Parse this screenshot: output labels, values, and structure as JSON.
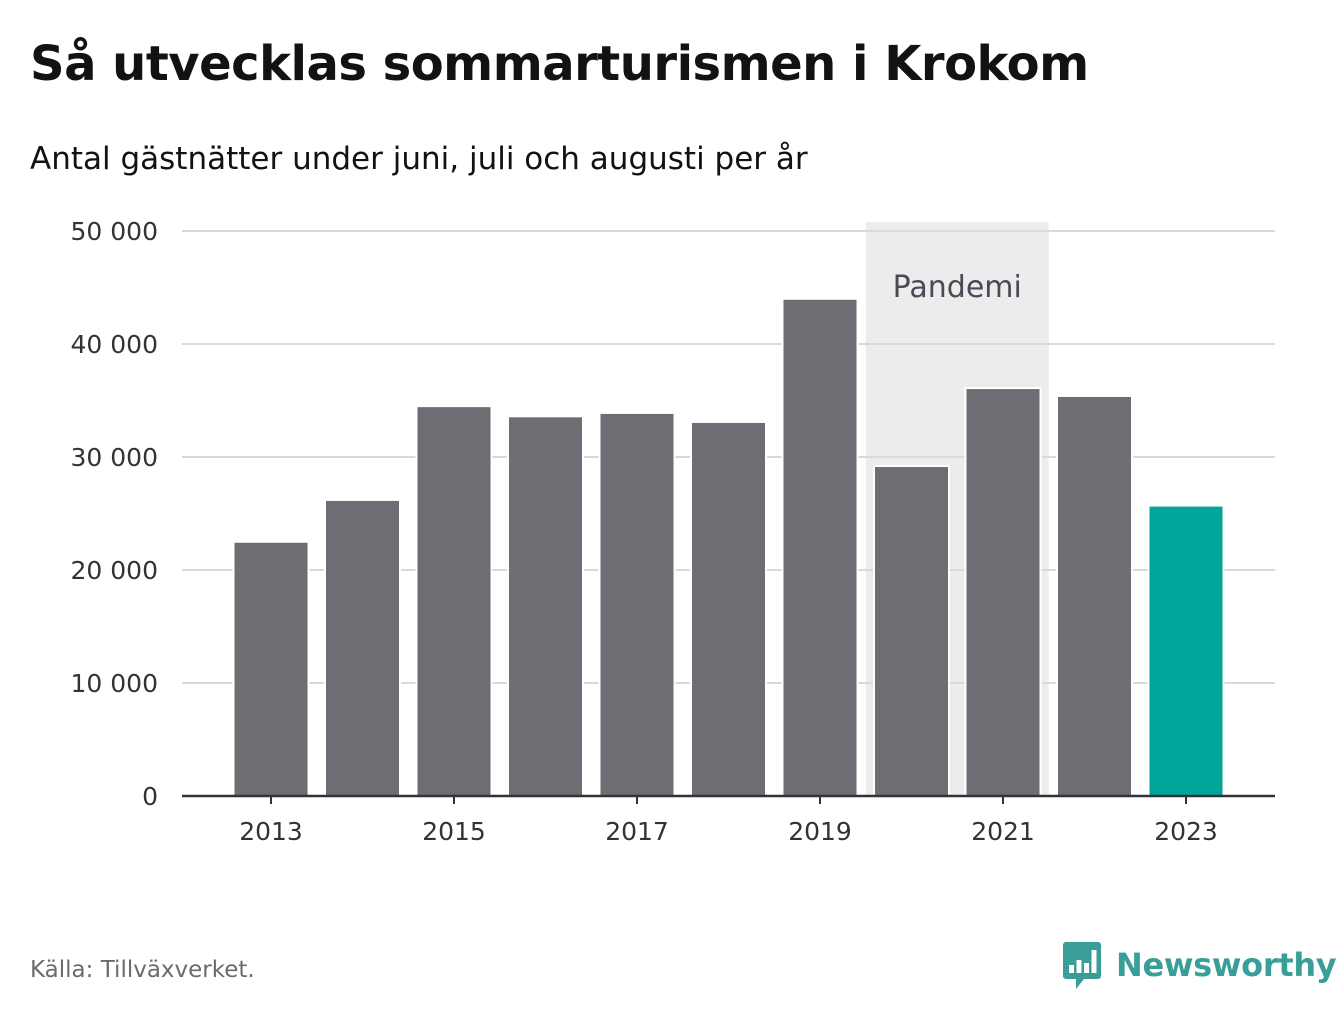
{
  "header": {
    "title": "Så utvecklas sommarturismen i Krokom",
    "subtitle": "Antal gästnätter under juni, juli och augusti per år"
  },
  "footer": {
    "source": "Källa: Tillväxverket.",
    "brand": "Newsworthy",
    "brand_icon": "newsworthy-logo-icon"
  },
  "colors": {
    "bar": "#6e6d73",
    "highlight": "#00a59b",
    "band": "#ececec",
    "grid": "#d9d9d9",
    "axis": "#333333"
  },
  "chart_data": {
    "type": "bar",
    "categories": [
      "2013",
      "2014",
      "2015",
      "2016",
      "2017",
      "2018",
      "2019",
      "2020",
      "2021",
      "2022",
      "2023"
    ],
    "values": [
      22500,
      26200,
      34500,
      33600,
      33900,
      33100,
      44000,
      29200,
      36100,
      35400,
      25700
    ],
    "highlight_index": 10,
    "ylim": [
      0,
      50000
    ],
    "yticks": [
      0,
      10000,
      20000,
      30000,
      40000,
      50000
    ],
    "ytick_labels": [
      "0",
      "10 000",
      "20 000",
      "30 000",
      "40 000",
      "50 000"
    ],
    "xtick_labels": [
      "2013",
      "2015",
      "2017",
      "2019",
      "2021",
      "2023"
    ],
    "xlabel": "",
    "ylabel": "",
    "grid": true,
    "annotation": {
      "label": "Pandemi",
      "from_category": "2020",
      "to_category": "2021"
    }
  }
}
